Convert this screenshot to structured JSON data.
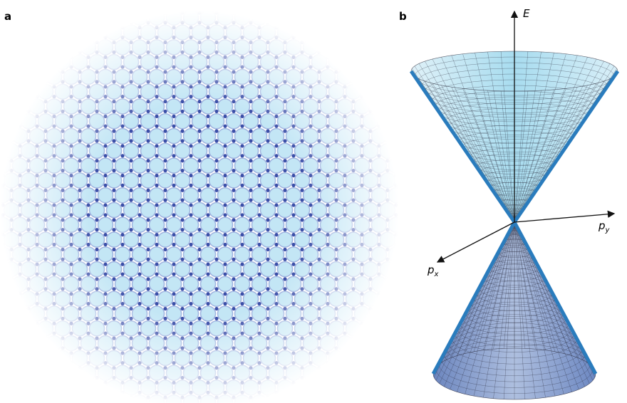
{
  "panel_a": {
    "label": "a"
  },
  "panel_b": {
    "label": "b",
    "axes": [
      {
        "name": "E"
      },
      {
        "name": "p",
        "subscript": "y"
      },
      {
        "name": "p",
        "subscript": "x"
      }
    ]
  }
}
